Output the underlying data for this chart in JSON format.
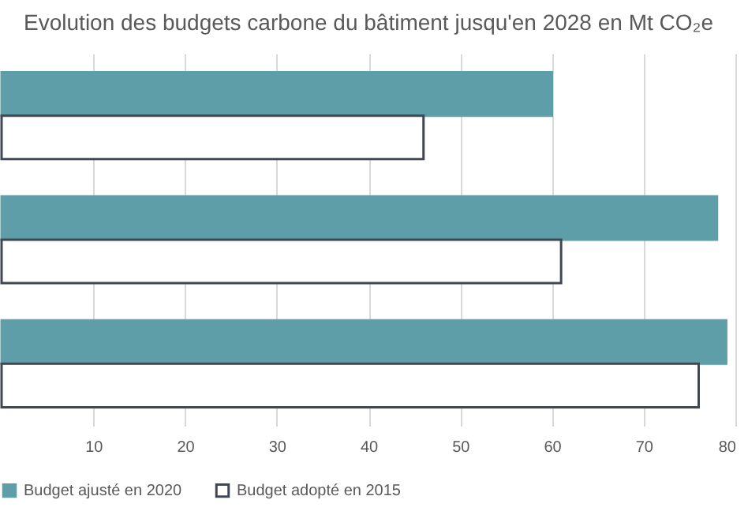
{
  "chart_data": {
    "type": "bar",
    "orientation": "horizontal",
    "title": "Evolution des budgets carbone du bâtiment jusqu'en 2028 en Mt CO₂e",
    "categories": [
      null,
      null,
      null
    ],
    "series": [
      {
        "name": "Budget ajusté en 2020",
        "color": "#5e9ea9",
        "values": [
          60,
          78,
          79
        ]
      },
      {
        "name": "Budget adopté en 2015",
        "color": "#ffffff",
        "values": [
          46,
          61,
          76
        ]
      }
    ],
    "xlim": [
      0,
      80
    ],
    "xticks": [
      10,
      20,
      30,
      40,
      50,
      60,
      70,
      80
    ],
    "grid": "x",
    "legend": "bottom",
    "tick_labels": "x"
  }
}
